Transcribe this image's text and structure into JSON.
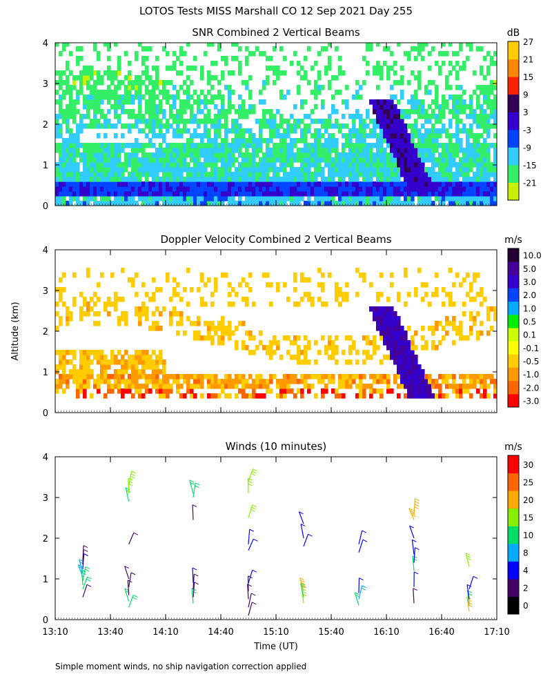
{
  "figure": {
    "title": "LOTOS Tests MISS Marshall CO  12 Sep 2021 Day 255",
    "ylabel": "Altitude (km)",
    "xlabel": "Time (UT)",
    "footnote": "Simple moment winds, no ship navigation correction applied"
  },
  "chart_data": [
    {
      "type": "heatmap",
      "title": "SNR Combined 2 Vertical Beams",
      "ylim": [
        0,
        4
      ],
      "yticks": [
        "0",
        "1",
        "2",
        "3",
        "4"
      ],
      "x_range": [
        "13:10",
        "17:10"
      ],
      "colorbar": {
        "unit": "dB",
        "levels": [
          "-21",
          "-15",
          "-9",
          "-3",
          "3",
          "9",
          "15",
          "21",
          "27"
        ],
        "colors": [
          "#c8f000",
          "#33ee66",
          "#33ccff",
          "#0044ff",
          "#3300cc",
          "#330055",
          "#ff2200",
          "#ff8800",
          "#ffcc00"
        ]
      },
      "features": [
        {
          "label": "persistent strong echo band",
          "altitude_km": [
            0.25,
            0.6
          ]
        },
        {
          "label": "strong echo plume",
          "time": "16:20",
          "altitude_km": [
            0.3,
            2.6
          ]
        }
      ]
    },
    {
      "type": "heatmap",
      "title": "Doppler Velocity Combined 2 Vertical Beams",
      "ylim": [
        0,
        4
      ],
      "yticks": [
        "0",
        "1",
        "2",
        "3",
        "4"
      ],
      "x_range": [
        "13:10",
        "17:10"
      ],
      "colorbar": {
        "unit": "m/s",
        "labels": [
          "-3.0",
          "-2.0",
          "-1.0",
          "-0.5",
          "-0.1",
          "0.1",
          "0.5",
          "1.0",
          "2.0",
          "3.0",
          "5.0",
          "10.0"
        ],
        "colors": [
          "#ff0000",
          "#ff6600",
          "#ff9900",
          "#ffcc00",
          "#ffff00",
          "#ccff00",
          "#00ee00",
          "#00aaff",
          "#0044ff",
          "#3300cc",
          "#440099",
          "#220033"
        ]
      }
    },
    {
      "type": "scatter",
      "subtype": "wind-barbs",
      "title": "Winds (10 minutes)",
      "ylim": [
        0,
        4
      ],
      "yticks": [
        "0",
        "1",
        "2",
        "3",
        "4"
      ],
      "xticks": [
        "13:10",
        "13:40",
        "14:10",
        "14:40",
        "15:10",
        "15:40",
        "16:10",
        "16:40",
        "17:10"
      ],
      "colorbar": {
        "unit": "m/s",
        "labels": [
          "0",
          "2",
          "4",
          "8",
          "10",
          "15",
          "20",
          "25",
          "30"
        ],
        "colors": [
          "#000000",
          "#440066",
          "#0000ff",
          "#00aaff",
          "#00dd66",
          "#88ee00",
          "#ffaa00",
          "#ff6600",
          "#ff0000"
        ]
      },
      "profiles": [
        {
          "time": "13:25",
          "barbs": [
            {
              "alt": 0.75,
              "speed": 10
            },
            {
              "alt": 0.85,
              "speed": 10
            },
            {
              "alt": 0.95,
              "speed": 10
            },
            {
              "alt": 1.05,
              "speed": 8
            },
            {
              "alt": 1.15,
              "speed": 8
            },
            {
              "alt": 1.25,
              "speed": 4
            },
            {
              "alt": 1.35,
              "speed": 2
            },
            {
              "alt": 1.45,
              "speed": 2
            },
            {
              "alt": 0.55,
              "speed": 2
            }
          ]
        },
        {
          "time": "13:50",
          "barbs": [
            {
              "alt": 0.3,
              "speed": 10
            },
            {
              "alt": 0.45,
              "speed": 10
            },
            {
              "alt": 0.6,
              "speed": 2
            },
            {
              "alt": 0.8,
              "speed": 2
            },
            {
              "alt": 1.0,
              "speed": 2
            },
            {
              "alt": 1.85,
              "speed": 2
            },
            {
              "alt": 2.9,
              "speed": 10
            },
            {
              "alt": 3.1,
              "speed": 15
            },
            {
              "alt": 3.3,
              "speed": 15
            }
          ]
        },
        {
          "time": "14:25",
          "barbs": [
            {
              "alt": 0.4,
              "speed": 10
            },
            {
              "alt": 0.55,
              "speed": 2
            },
            {
              "alt": 0.75,
              "speed": 2
            },
            {
              "alt": 0.9,
              "speed": 4
            },
            {
              "alt": 2.45,
              "speed": 2
            },
            {
              "alt": 3.0,
              "speed": 10
            },
            {
              "alt": 3.1,
              "speed": 10
            }
          ]
        },
        {
          "time": "14:55",
          "barbs": [
            {
              "alt": 0.1,
              "speed": 2
            },
            {
              "alt": 0.3,
              "speed": 2
            },
            {
              "alt": 0.5,
              "speed": 2
            },
            {
              "alt": 0.7,
              "speed": 2
            },
            {
              "alt": 0.9,
              "speed": 4
            },
            {
              "alt": 1.7,
              "speed": 4
            },
            {
              "alt": 1.85,
              "speed": 4
            },
            {
              "alt": 2.5,
              "speed": 15
            },
            {
              "alt": 3.1,
              "speed": 15
            },
            {
              "alt": 3.4,
              "speed": 15
            }
          ]
        },
        {
          "time": "15:25",
          "barbs": [
            {
              "alt": 0.4,
              "speed": 15
            },
            {
              "alt": 0.55,
              "speed": 10
            },
            {
              "alt": 0.7,
              "speed": 20
            },
            {
              "alt": 1.8,
              "speed": 4
            },
            {
              "alt": 2.0,
              "speed": 4
            },
            {
              "alt": 2.35,
              "speed": 4
            }
          ]
        },
        {
          "time": "15:55",
          "barbs": [
            {
              "alt": 0.35,
              "speed": 10
            },
            {
              "alt": 0.5,
              "speed": 8
            },
            {
              "alt": 0.65,
              "speed": 4
            },
            {
              "alt": 1.65,
              "speed": 4
            },
            {
              "alt": 1.85,
              "speed": 4
            }
          ]
        },
        {
          "time": "16:25",
          "barbs": [
            {
              "alt": 0.4,
              "speed": 2
            },
            {
              "alt": 0.8,
              "speed": 4
            },
            {
              "alt": 1.2,
              "speed": 10
            },
            {
              "alt": 1.4,
              "speed": 4
            },
            {
              "alt": 1.6,
              "speed": 4
            },
            {
              "alt": 2.0,
              "speed": 4
            },
            {
              "alt": 2.45,
              "speed": 20
            },
            {
              "alt": 2.6,
              "speed": 20
            }
          ]
        },
        {
          "time": "16:55",
          "barbs": [
            {
              "alt": 0.2,
              "speed": 20
            },
            {
              "alt": 0.35,
              "speed": 10
            },
            {
              "alt": 0.5,
              "speed": 4
            },
            {
              "alt": 0.75,
              "speed": 4
            },
            {
              "alt": 1.3,
              "speed": 15
            }
          ]
        }
      ]
    }
  ]
}
